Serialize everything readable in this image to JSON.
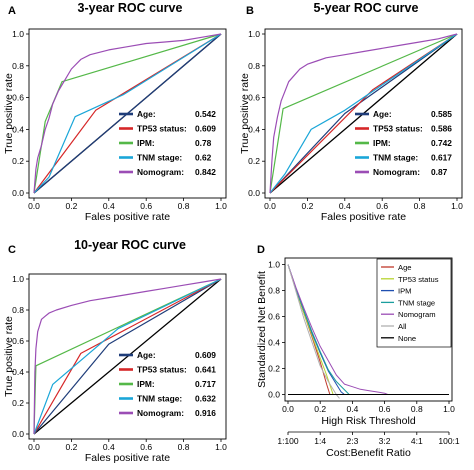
{
  "colors": {
    "age": "#1f3d7a",
    "tp53": "#d62728",
    "ipm": "#54b848",
    "tnm": "#1aa6d8",
    "nomogram": "#9b4db5",
    "dca_age": "#c0392b",
    "dca_tp53": "#b8d430",
    "dca_ipm": "#1f4fb0",
    "dca_tnm": "#1b9e9e",
    "dca_nomogram": "#9b4db5",
    "dca_all": "#b0b0b0",
    "dca_none": "#000000",
    "diagonal": "#000000"
  },
  "chart_data": [
    {
      "type": "line",
      "panel_label": "A",
      "title": "3-year ROC curve",
      "xlabel": "Fales positive rate",
      "ylabel": "True positive rate",
      "xlim": [
        0,
        1
      ],
      "ylim": [
        0,
        1
      ],
      "xticks": [
        "0.0",
        "0.2",
        "0.4",
        "0.6",
        "0.8",
        "1.0"
      ],
      "yticks": [
        "0.0",
        "0.2",
        "0.4",
        "0.6",
        "0.8",
        "1.0"
      ],
      "legend_position": "bottom-right",
      "series": [
        {
          "name": "Age:",
          "value": "0.542",
          "color_key": "age",
          "x": [
            0,
            1
          ],
          "y": [
            0,
            1
          ]
        },
        {
          "name": "TP53 status:",
          "value": "0.609",
          "color_key": "tp53",
          "x": [
            0,
            0.33,
            1
          ],
          "y": [
            0,
            0.52,
            1
          ]
        },
        {
          "name": "IPM:",
          "value": "0.78",
          "color_key": "ipm",
          "x": [
            0,
            0.06,
            0.15,
            1
          ],
          "y": [
            0,
            0.45,
            0.7,
            1
          ]
        },
        {
          "name": "TNM stage:",
          "value": "0.62",
          "color_key": "tnm",
          "x": [
            0,
            0.08,
            0.22,
            0.48,
            1
          ],
          "y": [
            0,
            0.1,
            0.48,
            0.62,
            1
          ]
        },
        {
          "name": "Nomogram:",
          "value": "0.842",
          "color_key": "nomogram",
          "x": [
            0,
            0.01,
            0.02,
            0.04,
            0.06,
            0.08,
            0.1,
            0.13,
            0.16,
            0.2,
            0.25,
            0.3,
            0.4,
            0.5,
            0.6,
            0.7,
            0.8,
            0.9,
            1.0
          ],
          "y": [
            0,
            0.15,
            0.22,
            0.3,
            0.4,
            0.47,
            0.56,
            0.64,
            0.7,
            0.78,
            0.84,
            0.87,
            0.9,
            0.92,
            0.94,
            0.95,
            0.96,
            0.98,
            1.0
          ]
        }
      ]
    },
    {
      "type": "line",
      "panel_label": "B",
      "title": "5-year ROC curve",
      "xlabel": "Fales positive rate",
      "ylabel": "True positive rate",
      "xlim": [
        0,
        1
      ],
      "ylim": [
        0,
        1
      ],
      "xticks": [
        "0.0",
        "0.2",
        "0.4",
        "0.6",
        "0.8",
        "1.0"
      ],
      "yticks": [
        "0.0",
        "0.2",
        "0.4",
        "0.6",
        "0.8",
        "1.0"
      ],
      "legend_position": "bottom-right",
      "series": [
        {
          "name": "Age:",
          "value": "0.585",
          "color_key": "age",
          "x": [
            0,
            0.4,
            1
          ],
          "y": [
            0,
            0.5,
            1
          ]
        },
        {
          "name": "TP53 status:",
          "value": "0.586",
          "color_key": "tp53",
          "x": [
            0,
            0.55,
            1
          ],
          "y": [
            0,
            0.65,
            1
          ]
        },
        {
          "name": "IPM:",
          "value": "0.742",
          "color_key": "ipm",
          "x": [
            0,
            0.07,
            1
          ],
          "y": [
            0,
            0.53,
            1
          ]
        },
        {
          "name": "TNM stage:",
          "value": "0.617",
          "color_key": "tnm",
          "x": [
            0,
            0.08,
            0.22,
            0.4,
            1
          ],
          "y": [
            0,
            0.12,
            0.4,
            0.52,
            1
          ]
        },
        {
          "name": "Nomogram:",
          "value": "0.87",
          "color_key": "nomogram",
          "x": [
            0,
            0.01,
            0.02,
            0.04,
            0.06,
            0.08,
            0.1,
            0.13,
            0.16,
            0.2,
            0.25,
            0.3,
            0.4,
            0.5,
            0.6,
            0.7,
            0.8,
            0.9,
            1.0
          ],
          "y": [
            0,
            0.2,
            0.35,
            0.48,
            0.58,
            0.64,
            0.7,
            0.74,
            0.78,
            0.81,
            0.83,
            0.85,
            0.87,
            0.89,
            0.91,
            0.93,
            0.95,
            0.97,
            1.0
          ]
        }
      ]
    },
    {
      "type": "line",
      "panel_label": "C",
      "title": "10-year ROC curve",
      "xlabel": "Fales positive rate",
      "ylabel": "True positive rate",
      "xlim": [
        0,
        1
      ],
      "ylim": [
        0,
        1
      ],
      "xticks": [
        "0.0",
        "0.2",
        "0.4",
        "0.6",
        "0.8",
        "1.0"
      ],
      "yticks": [
        "0.0",
        "0.2",
        "0.4",
        "0.6",
        "0.8",
        "1.0"
      ],
      "legend_position": "bottom-right",
      "series": [
        {
          "name": "Age:",
          "value": "0.609",
          "color_key": "age",
          "x": [
            0,
            0.4,
            1
          ],
          "y": [
            0,
            0.58,
            1
          ]
        },
        {
          "name": "TP53 status:",
          "value": "0.641",
          "color_key": "tp53",
          "x": [
            0,
            0.25,
            1
          ],
          "y": [
            0,
            0.52,
            1
          ]
        },
        {
          "name": "IPM:",
          "value": "0.717",
          "color_key": "ipm",
          "x": [
            0,
            0.01,
            1
          ],
          "y": [
            0,
            0.44,
            1
          ]
        },
        {
          "name": "TNM stage:",
          "value": "0.632",
          "color_key": "tnm",
          "x": [
            0,
            0.1,
            0.45,
            1
          ],
          "y": [
            0,
            0.32,
            0.68,
            1
          ]
        },
        {
          "name": "Nomogram:",
          "value": "0.916",
          "color_key": "nomogram",
          "x": [
            0,
            0.005,
            0.01,
            0.02,
            0.04,
            0.06,
            0.08,
            0.12,
            0.2,
            0.3,
            0.4,
            0.5,
            0.6,
            0.7,
            0.8,
            0.9,
            1.0
          ],
          "y": [
            0,
            0.4,
            0.55,
            0.66,
            0.74,
            0.76,
            0.78,
            0.8,
            0.83,
            0.86,
            0.88,
            0.9,
            0.92,
            0.94,
            0.96,
            0.98,
            1.0
          ]
        }
      ]
    },
    {
      "type": "line",
      "panel_label": "D",
      "xlabel": "High Risk Threshold",
      "xlabel2": "Cost:Benefit Ratio",
      "ylabel": "Standardized Net Benefit",
      "xlim": [
        0,
        1
      ],
      "ylim": [
        -0.05,
        1.05
      ],
      "xticks": [
        "0.0",
        "0.2",
        "0.4",
        "0.6",
        "0.8",
        "1.0"
      ],
      "xticks2": [
        "1:100",
        "1:4",
        "2:3",
        "3:2",
        "4:1",
        "100:1"
      ],
      "yticks": [
        "0.0",
        "0.2",
        "0.4",
        "0.6",
        "0.8",
        "1.0"
      ],
      "legend_position": "top-right",
      "series": [
        {
          "name": "Age",
          "color_key": "dca_age",
          "x": [
            0,
            0.05,
            0.1,
            0.15,
            0.2,
            0.24,
            0.26,
            0.3
          ],
          "y": [
            1.0,
            0.8,
            0.62,
            0.44,
            0.25,
            0.08,
            0.0,
            0.0
          ]
        },
        {
          "name": "TP53 status",
          "color_key": "dca_tp53",
          "x": [
            0,
            0.05,
            0.1,
            0.15,
            0.2,
            0.24,
            0.28,
            0.3
          ],
          "y": [
            1.0,
            0.8,
            0.62,
            0.45,
            0.28,
            0.15,
            0.0,
            0.0
          ]
        },
        {
          "name": "IPM",
          "color_key": "dca_ipm",
          "x": [
            0,
            0.05,
            0.1,
            0.15,
            0.2,
            0.25,
            0.3,
            0.33,
            0.35
          ],
          "y": [
            1.0,
            0.81,
            0.64,
            0.47,
            0.32,
            0.18,
            0.08,
            0.02,
            0.0
          ]
        },
        {
          "name": "TNM stage",
          "color_key": "dca_tnm",
          "x": [
            0,
            0.05,
            0.1,
            0.15,
            0.2,
            0.25,
            0.3,
            0.34,
            0.38
          ],
          "y": [
            1.0,
            0.81,
            0.64,
            0.48,
            0.33,
            0.19,
            0.1,
            0.05,
            0.0
          ]
        },
        {
          "name": "Nomogram",
          "color_key": "dca_nomogram",
          "x": [
            0,
            0.05,
            0.1,
            0.15,
            0.2,
            0.25,
            0.3,
            0.35,
            0.4,
            0.45,
            0.5,
            0.55,
            0.6,
            0.62
          ],
          "y": [
            1.0,
            0.82,
            0.66,
            0.51,
            0.37,
            0.26,
            0.15,
            0.08,
            0.06,
            0.04,
            0.03,
            0.02,
            0.01,
            0.0
          ]
        },
        {
          "name": "All",
          "color_key": "dca_all",
          "x": [
            0,
            0.05,
            0.1,
            0.15,
            0.2,
            0.25,
            0.3,
            0.32
          ],
          "y": [
            1.0,
            0.79,
            0.58,
            0.4,
            0.22,
            0.1,
            0.0,
            -0.03
          ]
        },
        {
          "name": "None",
          "color_key": "dca_none",
          "x": [
            0,
            1
          ],
          "y": [
            0,
            0
          ]
        }
      ]
    }
  ]
}
